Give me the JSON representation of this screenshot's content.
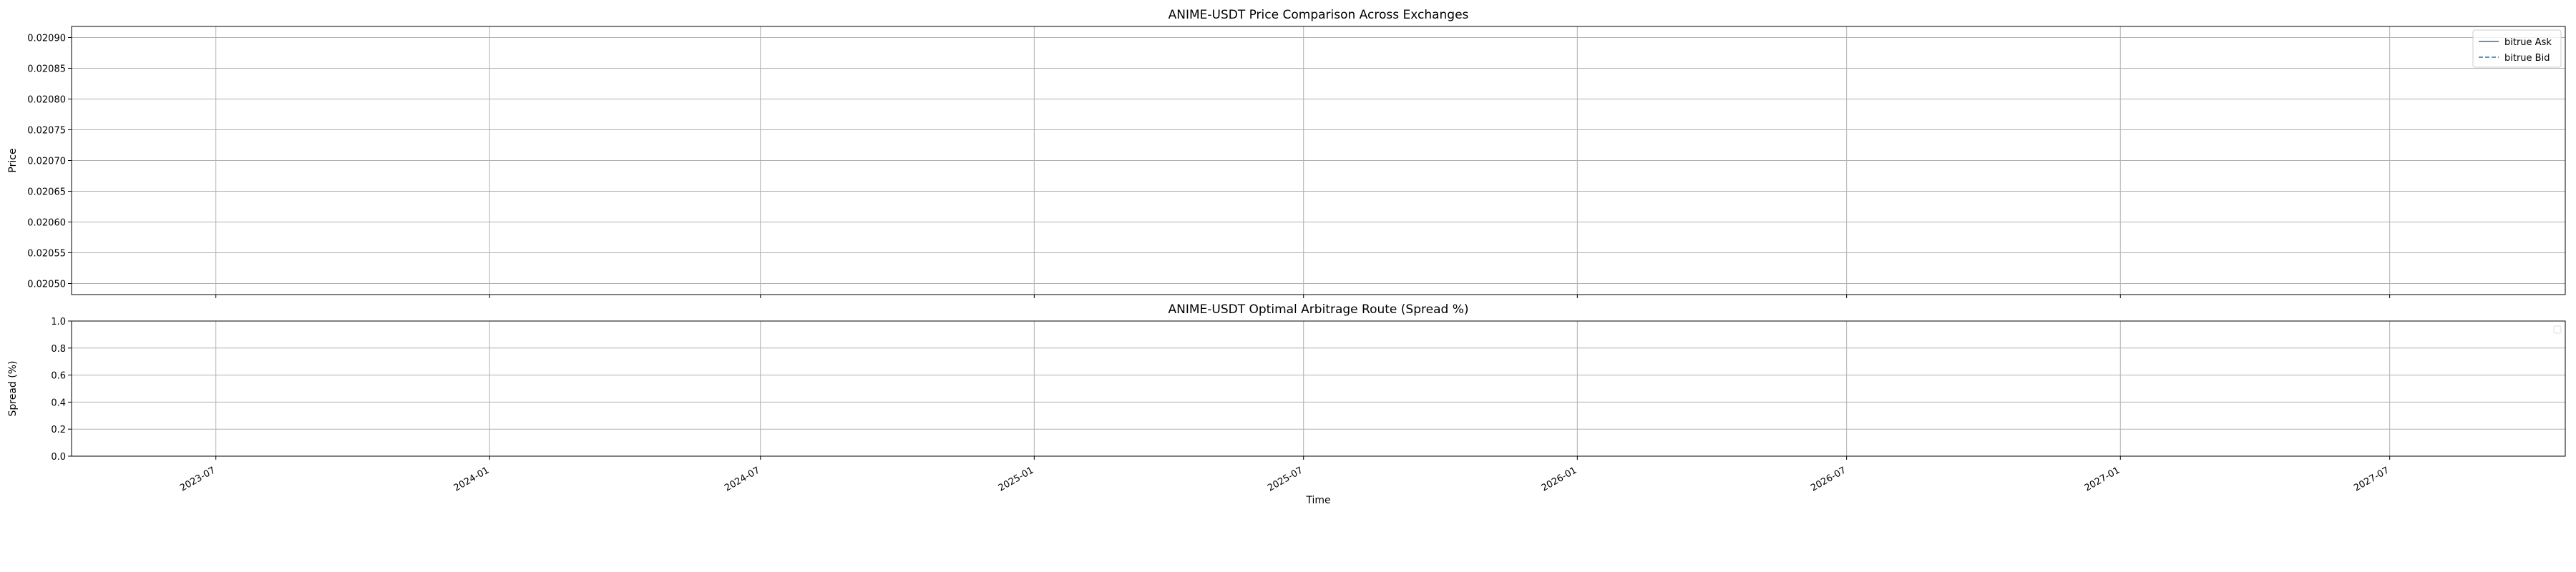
{
  "chart_data": [
    {
      "type": "line",
      "title": "ANIME-USDT Price Comparison Across Exchanges",
      "xlabel": "",
      "ylabel": "Price",
      "x_axis_type": "date",
      "xlim": [
        "2023-03-26",
        "2027-10-27"
      ],
      "ylim": [
        0.020482,
        0.020918
      ],
      "y_ticks": [
        0.0205,
        0.02055,
        0.0206,
        0.02065,
        0.0207,
        0.02075,
        0.0208,
        0.02085,
        0.0209
      ],
      "y_tick_labels": [
        "0.02050",
        "0.02055",
        "0.02060",
        "0.02065",
        "0.02070",
        "0.02075",
        "0.02080",
        "0.02085",
        "0.02090"
      ],
      "x_ticks": [
        "2023-07-01",
        "2024-01-01",
        "2024-07-01",
        "2025-01-01",
        "2025-07-01",
        "2026-01-01",
        "2026-07-01",
        "2027-01-01",
        "2027-07-01"
      ],
      "grid": true,
      "legend_position": "top-right",
      "series": [
        {
          "name": "bitrue Ask",
          "line_style": "solid",
          "color": "#1f77b4",
          "points": []
        },
        {
          "name": "bitrue Bid",
          "line_style": "dashed",
          "color": "#1f77b4",
          "points": []
        }
      ]
    },
    {
      "type": "line",
      "title": "ANIME-USDT Optimal Arbitrage Route (Spread %)",
      "xlabel": "Time",
      "ylabel": "Spread (%)",
      "x_axis_type": "date",
      "xlim": [
        "2023-03-26",
        "2027-10-27"
      ],
      "ylim": [
        0.0,
        1.0
      ],
      "y_ticks": [
        0.0,
        0.2,
        0.4,
        0.6,
        0.8,
        1.0
      ],
      "y_tick_labels": [
        "0.0",
        "0.2",
        "0.4",
        "0.6",
        "0.8",
        "1.0"
      ],
      "x_ticks": [
        "2023-07-01",
        "2024-01-01",
        "2024-07-01",
        "2025-01-01",
        "2025-07-01",
        "2026-01-01",
        "2026-07-01",
        "2027-01-01",
        "2027-07-01"
      ],
      "x_tick_labels": [
        "2023-07",
        "2024-01",
        "2024-07",
        "2025-01",
        "2025-07",
        "2026-01",
        "2026-07",
        "2027-01",
        "2027-07"
      ],
      "grid": true,
      "legend_position": "top-right",
      "series": []
    }
  ]
}
